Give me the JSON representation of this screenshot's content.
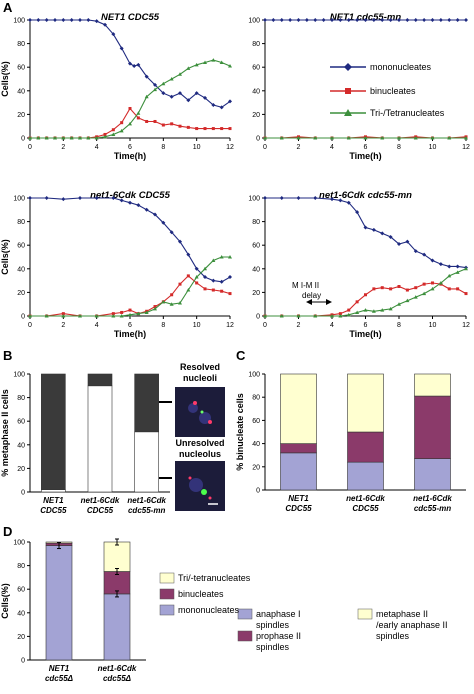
{
  "panel_letters": {
    "A": "A",
    "B": "B",
    "C": "C",
    "D": "D"
  },
  "time_legend": {
    "mono": "mononucleates",
    "bin": "binucleates",
    "tri": "Tri-/Tetranucleates"
  },
  "colors": {
    "mono": "#1f2a80",
    "bin": "#d42a2a",
    "tri": "#3c8f3c",
    "dark_bar": "#3a3a3a",
    "anaphase_I": "#a3a3d4",
    "prophase_II": "#8b3a6a",
    "metaphase_II": "#ffffd0",
    "d_mono": "#a3a3d4",
    "d_bin": "#8b3a6a",
    "d_tri": "#ffffd0"
  },
  "panel_B_labels": {
    "resolved": "Resolved\nnucleoli",
    "unresolved": "Unresolved\nnucleolus"
  },
  "annotation_delay": "M I-M II\ndelay",
  "chart_data": [
    {
      "id": "A1",
      "type": "line",
      "title": "NET1 CDC55",
      "xlabel": "Time(h)",
      "ylabel": "Cells(%)",
      "xlim": [
        0,
        12
      ],
      "ylim": [
        0,
        100
      ],
      "xticks": [
        "0",
        "2",
        "4",
        "6",
        "8",
        "10",
        "12"
      ],
      "yticks": [
        "0",
        "20",
        "40",
        "60",
        "80",
        "100"
      ],
      "series": [
        {
          "name": "mononucleates",
          "key": "mono",
          "x": [
            0,
            0.5,
            1,
            1.5,
            2,
            2.5,
            3,
            3.5,
            4,
            4.5,
            5,
            5.5,
            6,
            6.25,
            6.5,
            7,
            7.5,
            8,
            8.5,
            9,
            9.5,
            10,
            10.5,
            11,
            11.5,
            12
          ],
          "y": [
            100,
            100,
            100,
            100,
            100,
            100,
            100,
            100,
            99,
            96,
            88,
            76,
            63,
            61,
            62,
            52,
            45,
            38,
            35,
            38,
            32,
            38,
            34,
            28,
            26,
            31
          ]
        },
        {
          "name": "binucleates",
          "key": "bin",
          "x": [
            0,
            0.5,
            1,
            1.5,
            2,
            2.5,
            3,
            3.5,
            4,
            4.5,
            5,
            5.5,
            6,
            6.5,
            7,
            7.5,
            8,
            8.5,
            9,
            9.5,
            10,
            10.5,
            11,
            11.5,
            12
          ],
          "y": [
            0,
            0,
            0,
            0,
            0,
            0,
            0,
            0,
            1,
            3,
            7,
            13,
            25,
            17,
            14,
            14,
            11,
            12,
            10,
            9,
            8,
            8,
            8,
            8,
            8
          ]
        },
        {
          "name": "Tri-/Tetranucleates",
          "key": "tri",
          "x": [
            0,
            0.5,
            1,
            1.5,
            2,
            2.5,
            3,
            3.5,
            4,
            4.5,
            5,
            5.5,
            6,
            6.5,
            7,
            7.5,
            8,
            8.5,
            9,
            9.5,
            10,
            10.5,
            11,
            11.5,
            12
          ],
          "y": [
            0,
            0,
            0,
            0,
            0,
            0,
            0,
            0,
            0,
            1,
            3,
            6,
            12,
            21,
            35,
            41,
            46,
            50,
            54,
            59,
            62,
            64,
            66,
            64,
            61
          ]
        }
      ]
    },
    {
      "id": "A2",
      "type": "line",
      "title": "NET1 cdc55-mn",
      "xlabel": "Time(h)",
      "ylabel": "",
      "xlim": [
        0,
        12
      ],
      "ylim": [
        0,
        100
      ],
      "xticks": [
        "0",
        "2",
        "4",
        "6",
        "8",
        "10",
        "12"
      ],
      "yticks": [
        "0",
        "20",
        "40",
        "60",
        "80",
        "100"
      ],
      "series": [
        {
          "name": "mononucleates",
          "key": "mono",
          "x": [
            0,
            0.5,
            1,
            1.5,
            2,
            2.5,
            3,
            3.5,
            4,
            4.5,
            5,
            5.5,
            6,
            6.5,
            7,
            7.5,
            8,
            8.5,
            9,
            9.5,
            10,
            10.5,
            11,
            11.5,
            12
          ],
          "y": [
            100,
            100,
            100,
            100,
            100,
            100,
            100,
            100,
            100,
            100,
            100,
            100,
            100,
            100,
            100,
            100,
            100,
            100,
            100,
            100,
            100,
            100,
            100,
            100,
            100
          ]
        },
        {
          "name": "binucleates",
          "key": "bin",
          "x": [
            0,
            1,
            2,
            3,
            4,
            5,
            6,
            7,
            8,
            9,
            10,
            11,
            12
          ],
          "y": [
            0,
            0,
            1,
            0,
            0,
            0,
            1,
            0,
            0,
            1,
            0,
            0,
            1
          ]
        },
        {
          "name": "Tri-/Tetranucleates",
          "key": "tri",
          "x": [
            0,
            1,
            2,
            3,
            4,
            5,
            6,
            7,
            8,
            9,
            10,
            11,
            12
          ],
          "y": [
            0,
            0,
            0,
            0,
            0,
            0,
            0,
            0,
            0,
            0,
            0,
            0,
            0
          ]
        }
      ]
    },
    {
      "id": "A3",
      "type": "line",
      "title": "net1-6Cdk CDC55",
      "xlabel": "Time(h)",
      "ylabel": "Cells(%)",
      "xlim": [
        0,
        12
      ],
      "ylim": [
        0,
        100
      ],
      "xticks": [
        "0",
        "2",
        "4",
        "6",
        "8",
        "10",
        "12"
      ],
      "yticks": [
        "0",
        "20",
        "40",
        "60",
        "80",
        "100"
      ],
      "series": [
        {
          "name": "mononucleates",
          "key": "mono",
          "x": [
            0,
            1,
            2,
            3,
            4,
            5,
            5.5,
            6,
            6.5,
            7,
            7.5,
            8,
            8.5,
            9,
            9.5,
            10,
            10.5,
            11,
            11.5,
            12
          ],
          "y": [
            100,
            100,
            99,
            100,
            100,
            100,
            98,
            96,
            94,
            90,
            86,
            79,
            71,
            63,
            52,
            40,
            33,
            30,
            29,
            33
          ]
        },
        {
          "name": "binucleates",
          "key": "bin",
          "x": [
            0,
            1,
            2,
            3,
            4,
            5,
            5.5,
            6,
            6.5,
            7,
            7.5,
            8,
            8.5,
            9,
            9.5,
            10,
            10.5,
            11,
            11.5,
            12
          ],
          "y": [
            0,
            0,
            2,
            0,
            0,
            2,
            3,
            5,
            2,
            4,
            8,
            12,
            18,
            27,
            34,
            28,
            23,
            22,
            21,
            19
          ]
        },
        {
          "name": "Tri-/Tetranucleates",
          "key": "tri",
          "x": [
            0,
            1,
            2,
            3,
            4,
            5,
            5.5,
            6,
            6.5,
            7,
            7.5,
            8,
            8.5,
            9,
            9.5,
            10,
            10.5,
            11,
            11.5,
            12
          ],
          "y": [
            0,
            0,
            0,
            0,
            0,
            0,
            0,
            1,
            2,
            3,
            6,
            12,
            10,
            11,
            22,
            33,
            40,
            47,
            50,
            50
          ]
        }
      ]
    },
    {
      "id": "A4",
      "type": "line",
      "title": "net1-6Cdk cdc55-mn",
      "xlabel": "Time(h)",
      "ylabel": "",
      "xlim": [
        0,
        12
      ],
      "ylim": [
        0,
        100
      ],
      "xticks": [
        "0",
        "2",
        "4",
        "6",
        "8",
        "10",
        "12"
      ],
      "yticks": [
        "0",
        "20",
        "40",
        "60",
        "80",
        "100"
      ],
      "series": [
        {
          "name": "mononucleates",
          "key": "mono",
          "x": [
            0,
            1,
            2,
            3,
            4,
            4.5,
            5,
            5.5,
            6,
            6.5,
            7,
            7.5,
            8,
            8.5,
            9,
            9.5,
            10,
            10.5,
            11,
            11.5,
            12
          ],
          "y": [
            100,
            100,
            100,
            100,
            99,
            98,
            96,
            88,
            75,
            73,
            70,
            67,
            61,
            63,
            55,
            52,
            47,
            44,
            42,
            42,
            41
          ]
        },
        {
          "name": "binucleates",
          "key": "bin",
          "x": [
            0,
            1,
            2,
            3,
            4,
            4.5,
            5,
            5.5,
            6,
            6.5,
            7,
            7.5,
            8,
            8.5,
            9,
            9.5,
            10,
            10.5,
            11,
            11.5,
            12
          ],
          "y": [
            0,
            0,
            0,
            0,
            1,
            2,
            5,
            12,
            18,
            23,
            24,
            23,
            25,
            22,
            24,
            27,
            28,
            27,
            23,
            23,
            19
          ]
        },
        {
          "name": "Tri-/Tetranucleates",
          "key": "tri",
          "x": [
            0,
            1,
            2,
            3,
            4,
            4.5,
            5,
            5.5,
            6,
            6.5,
            7,
            7.5,
            8,
            8.5,
            9,
            9.5,
            10,
            10.5,
            11,
            11.5,
            12
          ],
          "y": [
            0,
            0,
            0,
            0,
            0,
            0,
            1,
            3,
            5,
            4,
            5,
            6,
            10,
            13,
            16,
            19,
            23,
            28,
            34,
            37,
            40
          ]
        }
      ]
    },
    {
      "id": "B",
      "type": "bar",
      "stacked": true,
      "ylabel": "% metaphase II cells",
      "ylim": [
        0,
        100
      ],
      "yticks": [
        "0",
        "20",
        "40",
        "60",
        "80",
        "100"
      ],
      "categories": [
        "NET1\nCDC55",
        "net1-6Cdk\nCDC55",
        "net1-6Cdk\ncdc55-mn"
      ],
      "series": [
        {
          "name": "",
          "key": "white",
          "values": [
            2,
            90,
            51
          ]
        },
        {
          "name": "",
          "key": "dark",
          "values": [
            98,
            10,
            49
          ]
        }
      ]
    },
    {
      "id": "C",
      "type": "bar",
      "stacked": true,
      "ylabel": "% binucleate cells",
      "ylim": [
        0,
        100
      ],
      "yticks": [
        "0",
        "20",
        "40",
        "60",
        "80",
        "100"
      ],
      "categories": [
        "NET1\nCDC55",
        "net1-6Cdk\nCDC55",
        "net1-6Cdk\ncdc55-mn"
      ],
      "series": [
        {
          "name": "anaphase I\nspindles",
          "key": "anaphase_I",
          "values": [
            32,
            24,
            27
          ]
        },
        {
          "name": "prophase II\nspindles",
          "key": "prophase_II",
          "values": [
            8,
            26,
            54
          ]
        },
        {
          "name": "metaphase II\n/early anaphase II\nspindles",
          "key": "metaphase_II",
          "values": [
            60,
            50,
            19
          ]
        }
      ]
    },
    {
      "id": "D",
      "type": "bar",
      "stacked": true,
      "ylabel": "Cells(%)",
      "ylim": [
        0,
        100
      ],
      "yticks": [
        "0",
        "20",
        "40",
        "60",
        "80",
        "100"
      ],
      "categories": [
        "NET1\ncdc55Δ",
        "net1-6Cdk\ncdc55Δ"
      ],
      "series": [
        {
          "name": "mononucleates",
          "key": "d_mono",
          "values": [
            97,
            56
          ]
        },
        {
          "name": "binucleates",
          "key": "d_bin",
          "values": [
            2,
            19
          ]
        },
        {
          "name": "Tri/-tetranucleates",
          "key": "d_tri",
          "values": [
            1,
            25
          ]
        }
      ]
    }
  ]
}
